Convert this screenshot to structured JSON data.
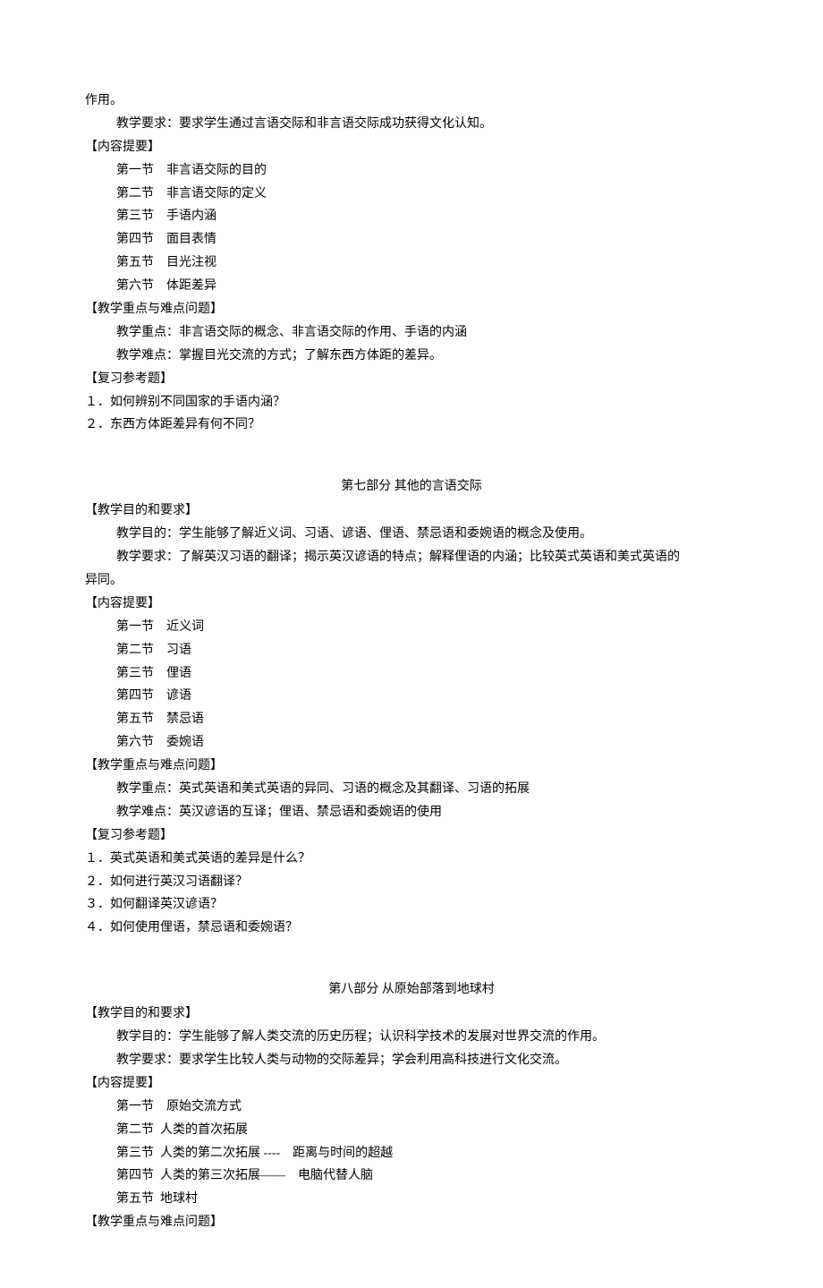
{
  "top_fragment": "作用。",
  "top_teach_req": "教学要求：要求学生通过言语交际和非言语交际成功获得文化认知。",
  "part6": {
    "content_header": "【内容提要】",
    "sections": [
      "第一节    非言语交际的目的",
      "第二节    非言语交际的定义",
      "第三节    手语内涵",
      "第四节    面目表情",
      "第五节    目光注视",
      "第六节    体距差异"
    ],
    "kd_header": "【教学重点与难点问题】",
    "kd_point": "教学重点：非言语交际的概念、非言语交际的作用、手语的内涵",
    "kd_diff": "教学难点：掌握目光交流的方式；了解东西方体距的差异。",
    "review_header": "【复习参考题】",
    "q1": "１．如何辨别不同国家的手语内涵？",
    "q2": "２．东西方体距差异有何不同？"
  },
  "part7": {
    "title": "第七部分     其他的言语交际",
    "obj_header": "【教学目的和要求】",
    "obj_goal": "教学目的：学生能够了解近义词、习语、谚语、俚语、禁忌语和委婉语的概念及使用。",
    "obj_req_l1": "教学要求：了解英汉习语的翻译；揭示英汉谚语的特点；解释俚语的内涵；比较英式英语和美式英语的",
    "obj_req_l2": "异同。",
    "content_header": "【内容提要】",
    "sections": [
      "第一节    近义词",
      "第二节    习语",
      "第三节    俚语",
      "第四节    谚语",
      "第五节    禁忌语",
      "第六节    委婉语"
    ],
    "kd_header": "【教学重点与难点问题】",
    "kd_point": "教学重点：英式英语和美式英语的异同、习语的概念及其翻译、习语的拓展",
    "kd_diff": "教学难点：英汉谚语的互译；俚语、禁忌语和委婉语的使用",
    "review_header": "【复习参考题】",
    "q1": "１．英式英语和美式英语的差异是什么？",
    "q2": "２．如何进行英汉习语翻译？",
    "q3": "３．如何翻译英汉谚语？",
    "q4": "４．如何使用俚语，禁忌语和委婉语？"
  },
  "part8": {
    "title": "第八部分     从原始部落到地球村",
    "obj_header": "【教学目的和要求】",
    "obj_goal": "教学目的：学生能够了解人类交流的历史历程；认识科学技术的发展对世界交流的作用。",
    "obj_req": "教学要求：要求学生比较人类与动物的交际差异；学会利用高科技进行文化交流。",
    "content_header": "【内容提要】",
    "sections": [
      "第一节    原始交流方式",
      "第二节  人类的首次拓展",
      "第三节  人类的第二次拓展 ----    距离与时间的超越",
      "第四节  人类的第三次拓展——    电脑代替人脑",
      "第五节  地球村"
    ],
    "kd_header": "【教学重点与难点问题】"
  }
}
